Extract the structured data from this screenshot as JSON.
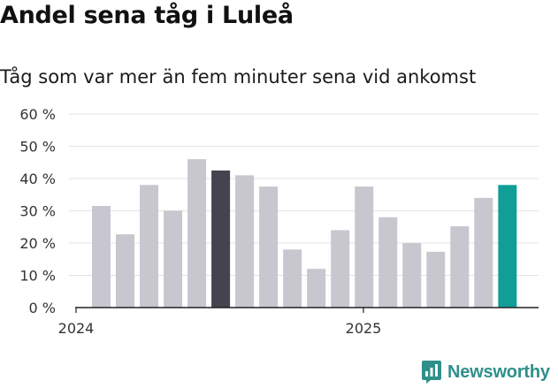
{
  "title": "Andel sena tåg i Luleå",
  "subtitle": "Tåg som var mer än fem minuter sena vid ankomst",
  "brand": "Newsworthy",
  "colors": {
    "bar": "#c8c6cf",
    "highlight_dark": "#45434f",
    "highlight_accent": "#109e96",
    "grid": "#e3e3e3",
    "axis": "#222222",
    "text": "#333333",
    "brand": "#2f8f8a"
  },
  "chart_data": {
    "type": "bar",
    "ylim": [
      0,
      60
    ],
    "y_ticks": [
      "0 %",
      "10 %",
      "20 %",
      "30 %",
      "40 %",
      "50 %",
      "60 %"
    ],
    "y_tick_values": [
      0,
      10,
      20,
      30,
      40,
      50,
      60
    ],
    "x_tick_labels": [
      "2024",
      "2025"
    ],
    "grid": true,
    "values": [
      31.5,
      22.7,
      38.0,
      30.0,
      46.0,
      42.5,
      41.0,
      37.5,
      18.0,
      12.0,
      24.0,
      37.5,
      28.0,
      20.0,
      17.3,
      25.2,
      34.0,
      38.0
    ],
    "highlight": {
      "5": "dark",
      "17": "accent"
    }
  }
}
